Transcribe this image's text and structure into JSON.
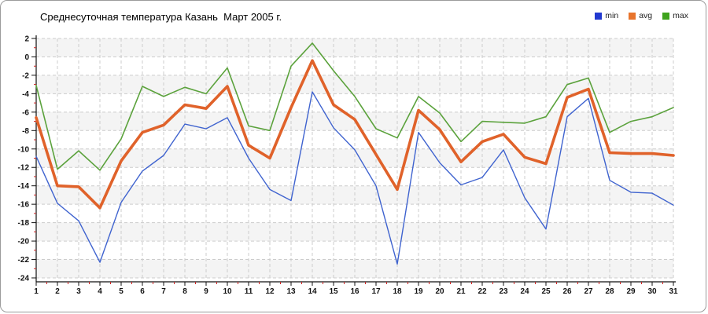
{
  "title": "Среднесуточная температура Казань  Март 2005 г.",
  "legend": {
    "items": [
      {
        "label": "min",
        "color": "#2239d0"
      },
      {
        "label": "avg",
        "color": "#e8742c"
      },
      {
        "label": "max",
        "color": "#3fa31d"
      }
    ]
  },
  "chart_data": {
    "type": "line",
    "title": "Среднесуточная температура Казань  Март 2005 г.",
    "x": [
      1,
      2,
      3,
      4,
      5,
      6,
      7,
      8,
      9,
      10,
      11,
      12,
      13,
      14,
      15,
      16,
      17,
      18,
      19,
      20,
      21,
      22,
      23,
      24,
      25,
      26,
      27,
      28,
      29,
      30,
      31
    ],
    "xlabel": "",
    "ylabel": "",
    "ylim": [
      -24,
      2
    ],
    "ytick_step": 2,
    "grid": "dashed",
    "legend_position": "top-right",
    "grid_color": "#cccccc",
    "band_color": "#f4f4f4",
    "axis_color": "#111111",
    "minor_tick_color": "#cc2222",
    "draw_order": [
      "max",
      "min",
      "avg"
    ],
    "series": [
      {
        "name": "min",
        "color": "#3f63cf",
        "width": 1.4,
        "values": [
          -10.8,
          -15.9,
          -17.8,
          -22.3,
          -15.8,
          -12.4,
          -10.7,
          -7.3,
          -7.8,
          -6.6,
          -11.0,
          -14.4,
          -15.6,
          -3.8,
          -7.7,
          -10.1,
          -14.0,
          -22.5,
          -8.2,
          -11.5,
          -13.9,
          -13.1,
          -10.1,
          -15.3,
          -18.7,
          -6.5,
          -4.5,
          -13.4,
          -14.7,
          -14.8,
          -16.1
        ]
      },
      {
        "name": "avg",
        "color": "#e0622a",
        "width": 3.6,
        "values": [
          -6.6,
          -14.0,
          -14.1,
          -16.4,
          -11.3,
          -8.2,
          -7.4,
          -5.2,
          -5.6,
          -3.2,
          -9.6,
          -11.0,
          -5.5,
          -0.4,
          -5.2,
          -6.8,
          -10.6,
          -14.4,
          -5.8,
          -7.9,
          -11.4,
          -9.2,
          -8.4,
          -10.9,
          -11.6,
          -4.4,
          -3.5,
          -10.4,
          -10.5,
          -10.5,
          -10.7
        ]
      },
      {
        "name": "max",
        "color": "#5ba23c",
        "width": 1.6,
        "values": [
          -3.1,
          -12.2,
          -10.2,
          -12.3,
          -8.9,
          -3.2,
          -4.3,
          -3.3,
          -4.0,
          -1.2,
          -7.5,
          -8.0,
          -1.0,
          1.5,
          -1.5,
          -4.3,
          -7.8,
          -8.8,
          -4.3,
          -6.1,
          -9.2,
          -7.0,
          -7.1,
          -7.2,
          -6.5,
          -3.0,
          -2.3,
          -8.2,
          -7.0,
          -6.5,
          -5.5
        ]
      }
    ]
  }
}
